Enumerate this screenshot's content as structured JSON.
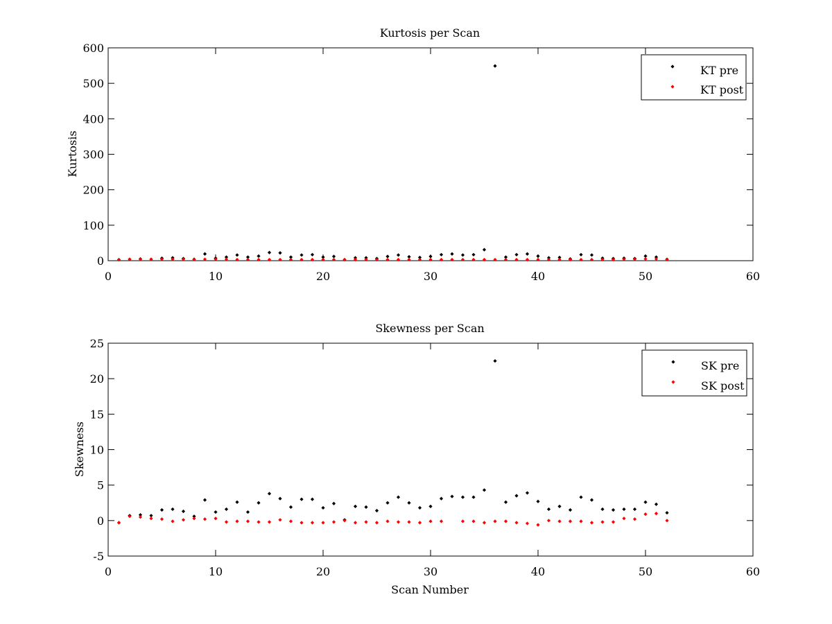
{
  "colors": {
    "pre": "#000000",
    "post": "#ff0000",
    "axes": "#000000",
    "background": "#ffffff"
  },
  "chart_data": [
    {
      "type": "scatter",
      "title": "Kurtosis per Scan",
      "xlabel": "",
      "ylabel": "Kurtosis",
      "xlim": [
        0,
        60
      ],
      "ylim": [
        0,
        600
      ],
      "xticks": [
        0,
        10,
        20,
        30,
        40,
        50,
        60
      ],
      "yticks": [
        0,
        100,
        200,
        300,
        400,
        500,
        600
      ],
      "grid": false,
      "legend": "top-right",
      "series": [
        {
          "name": "KT pre",
          "color": "#000000",
          "x": [
            1,
            2,
            3,
            4,
            5,
            6,
            7,
            8,
            9,
            10,
            11,
            12,
            13,
            14,
            15,
            16,
            17,
            18,
            19,
            20,
            21,
            22,
            23,
            24,
            25,
            26,
            27,
            28,
            29,
            30,
            31,
            32,
            33,
            34,
            35,
            36,
            37,
            38,
            39,
            40,
            41,
            42,
            43,
            44,
            45,
            46,
            47,
            48,
            49,
            50,
            51,
            52
          ],
          "y": [
            3,
            4,
            5,
            4,
            7,
            8,
            6,
            4,
            19,
            7,
            10,
            16,
            10,
            13,
            23,
            22,
            10,
            16,
            17,
            10,
            12,
            3,
            8,
            8,
            6,
            12,
            16,
            11,
            9,
            12,
            17,
            19,
            16,
            17,
            31,
            549,
            10,
            17,
            19,
            13,
            8,
            9,
            5,
            17,
            16,
            7,
            6,
            7,
            6,
            13,
            10,
            4
          ]
        },
        {
          "name": "KT post",
          "color": "#ff0000",
          "x": [
            1,
            2,
            3,
            4,
            5,
            6,
            7,
            8,
            9,
            10,
            11,
            12,
            13,
            14,
            15,
            16,
            17,
            18,
            19,
            20,
            21,
            22,
            23,
            24,
            25,
            26,
            27,
            28,
            29,
            30,
            31,
            32,
            33,
            34,
            35,
            36,
            37,
            38,
            39,
            40,
            41,
            42,
            43,
            44,
            45,
            46,
            47,
            48,
            49,
            50,
            51,
            52
          ],
          "y": [
            3,
            4,
            4,
            4,
            4,
            4,
            4,
            3,
            4,
            4,
            4,
            3,
            3,
            3,
            3,
            3,
            3,
            3,
            3,
            3,
            3,
            3,
            3,
            3,
            3,
            3,
            3,
            3,
            3,
            3,
            3,
            3,
            3,
            3,
            3,
            3,
            3,
            3,
            3,
            3,
            3,
            3,
            3,
            3,
            3,
            3,
            3,
            4,
            4,
            5,
            5,
            3
          ]
        }
      ]
    },
    {
      "type": "scatter",
      "title": "Skewness per Scan",
      "xlabel": "Scan Number",
      "ylabel": "Skewness",
      "xlim": [
        0,
        60
      ],
      "ylim": [
        -5,
        25
      ],
      "xticks": [
        0,
        10,
        20,
        30,
        40,
        50,
        60
      ],
      "yticks": [
        -5,
        0,
        5,
        10,
        15,
        20,
        25
      ],
      "grid": false,
      "legend": "top-right",
      "series": [
        {
          "name": "SK pre",
          "color": "#000000",
          "x": [
            1,
            2,
            3,
            4,
            5,
            6,
            7,
            8,
            9,
            10,
            11,
            12,
            13,
            14,
            15,
            16,
            17,
            18,
            19,
            20,
            21,
            22,
            23,
            24,
            25,
            26,
            27,
            28,
            29,
            30,
            31,
            32,
            33,
            34,
            35,
            36,
            37,
            38,
            39,
            40,
            41,
            42,
            43,
            44,
            45,
            46,
            47,
            48,
            49,
            50,
            51,
            52
          ],
          "y": [
            -0.3,
            0.7,
            0.8,
            0.7,
            1.5,
            1.6,
            1.3,
            0.6,
            2.9,
            1.2,
            1.6,
            2.6,
            1.2,
            2.5,
            3.8,
            3.1,
            1.9,
            3.0,
            3.0,
            1.8,
            2.4,
            0.1,
            2.0,
            1.9,
            1.4,
            2.5,
            3.3,
            2.5,
            1.8,
            2.0,
            3.1,
            3.4,
            3.3,
            3.3,
            4.3,
            22.5,
            2.6,
            3.5,
            3.9,
            2.7,
            1.6,
            2.0,
            1.5,
            3.3,
            2.9,
            1.6,
            1.5,
            1.6,
            1.6,
            2.6,
            2.3,
            1.1
          ]
        },
        {
          "name": "SK post",
          "color": "#ff0000",
          "x": [
            1,
            2,
            3,
            4,
            5,
            6,
            7,
            8,
            9,
            10,
            11,
            12,
            13,
            14,
            15,
            16,
            17,
            18,
            19,
            20,
            21,
            22,
            23,
            24,
            25,
            26,
            27,
            28,
            29,
            30,
            31,
            33,
            34,
            35,
            36,
            37,
            38,
            39,
            40,
            41,
            42,
            43,
            44,
            45,
            46,
            47,
            48,
            49,
            50,
            51,
            52
          ],
          "y": [
            -0.3,
            0.6,
            0.5,
            0.3,
            0.2,
            -0.1,
            0.1,
            0.3,
            0.2,
            0.3,
            -0.2,
            -0.1,
            -0.1,
            -0.2,
            -0.2,
            0.1,
            -0.1,
            -0.3,
            -0.3,
            -0.3,
            -0.2,
            0.0,
            -0.3,
            -0.2,
            -0.3,
            -0.1,
            -0.2,
            -0.2,
            -0.3,
            -0.1,
            -0.1,
            -0.1,
            -0.1,
            -0.3,
            -0.1,
            -0.1,
            -0.3,
            -0.4,
            -0.6,
            0.0,
            -0.1,
            -0.1,
            -0.1,
            -0.3,
            -0.2,
            -0.2,
            0.3,
            0.2,
            0.9,
            1.0,
            0.0
          ]
        }
      ]
    }
  ]
}
